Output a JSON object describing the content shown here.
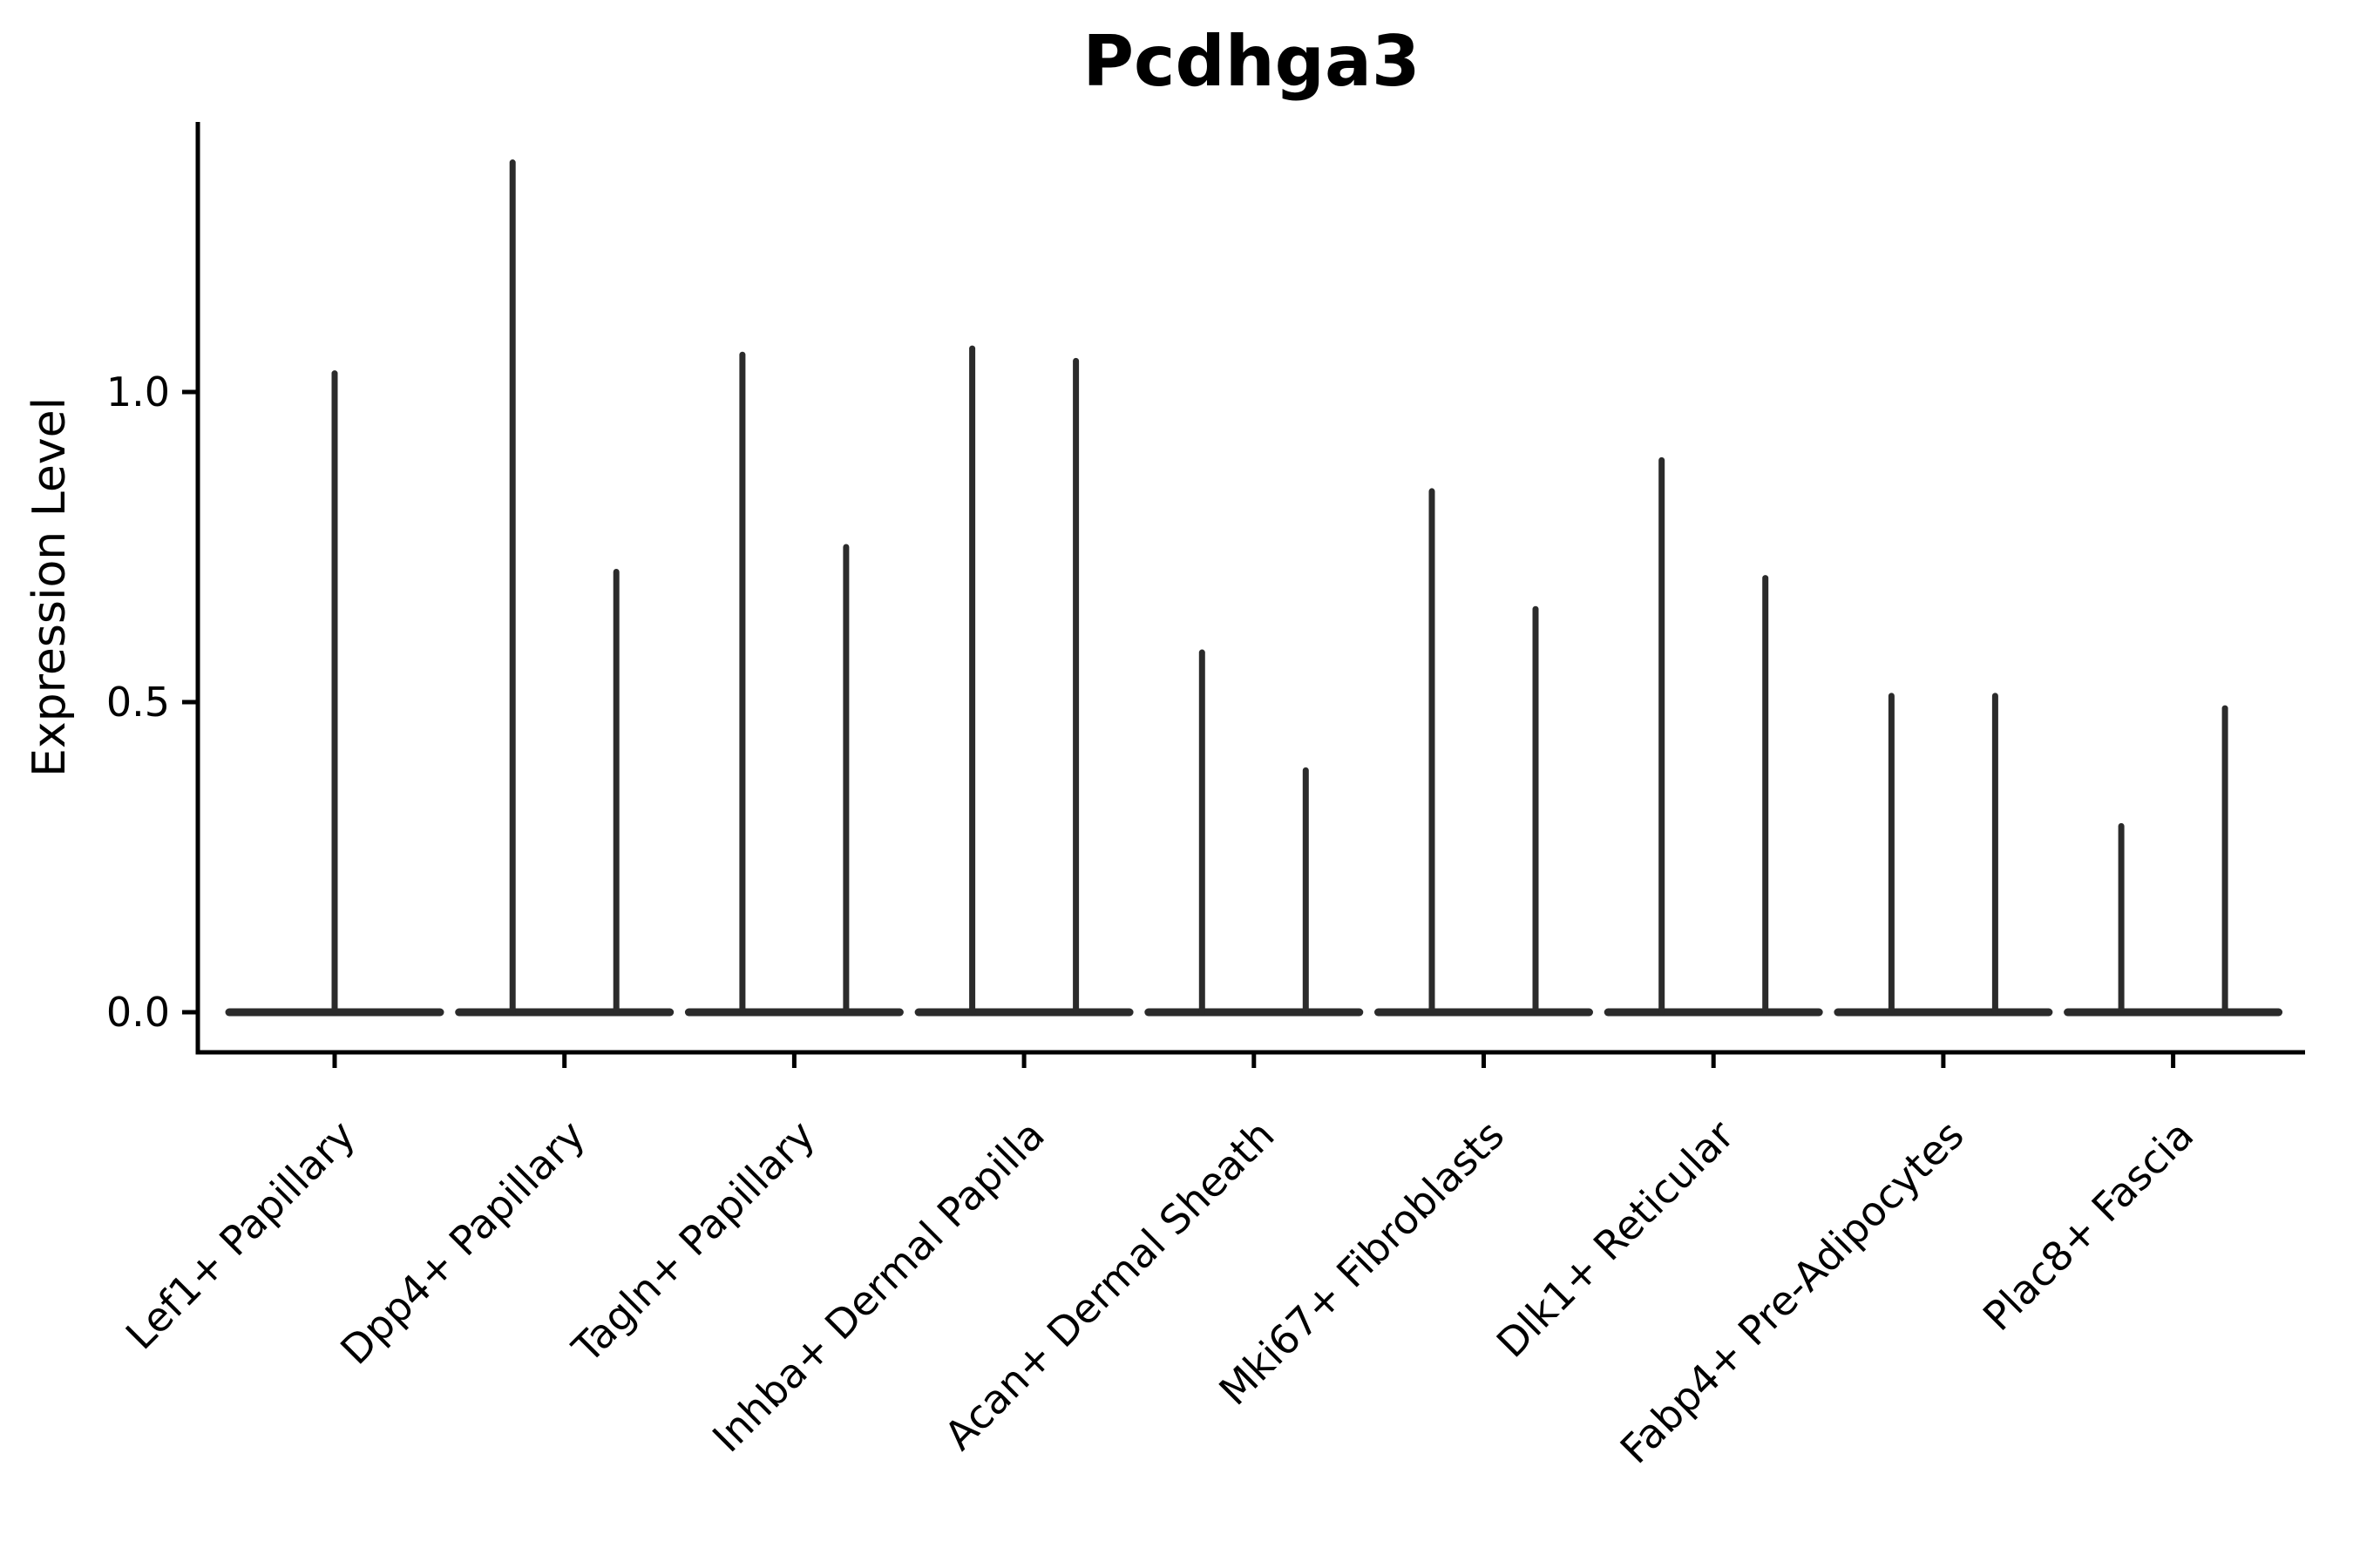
{
  "chart_data": {
    "type": "violin",
    "title": "Pcdhga3",
    "ylabel": "Expression Level",
    "xlabel": "",
    "grid": false,
    "legend": "none",
    "ylim": [
      -0.065,
      1.435
    ],
    "yticks": [
      0.0,
      0.5,
      1.0
    ],
    "ytick_labels": [
      "0.0",
      "0.5",
      "1.0"
    ],
    "categories": [
      "Lef1+ Papillary",
      "Dpp4+ Papillary",
      "Tagln+ Papillary",
      "Inhba+ Dermal Papilla",
      "Acan+ Dermal Sheath",
      "Mki67+ Fibroblasts",
      "Dlk1+ Reticular",
      "Fabp4+ Pre-Adipocytes",
      "Plac8+ Fascia"
    ],
    "series": [
      {
        "category": "Lef1+ Papillary",
        "peaks": [
          1.03
        ]
      },
      {
        "category": "Dpp4+ Papillary",
        "peaks": [
          1.37,
          0.71
        ]
      },
      {
        "category": "Tagln+ Papillary",
        "peaks": [
          1.06,
          0.75
        ]
      },
      {
        "category": "Inhba+ Dermal Papilla",
        "peaks": [
          1.07,
          1.05
        ]
      },
      {
        "category": "Acan+ Dermal Sheath",
        "peaks": [
          0.58,
          0.39
        ]
      },
      {
        "category": "Mki67+ Fibroblasts",
        "peaks": [
          0.84,
          0.65
        ]
      },
      {
        "category": "Dlk1+ Reticular",
        "peaks": [
          0.89,
          0.7
        ]
      },
      {
        "category": "Fabp4+ Pre-Adipocytes",
        "peaks": [
          0.51,
          0.51
        ]
      },
      {
        "category": "Plac8+ Fascia",
        "peaks": [
          0.3,
          0.49
        ]
      }
    ],
    "violin_note": "each category shows a flat base at 0 with thin density spikes; all expression mass near zero",
    "colors": {
      "violin": "#2b2b2b",
      "axis": "#000000",
      "background": "#ffffff"
    }
  }
}
